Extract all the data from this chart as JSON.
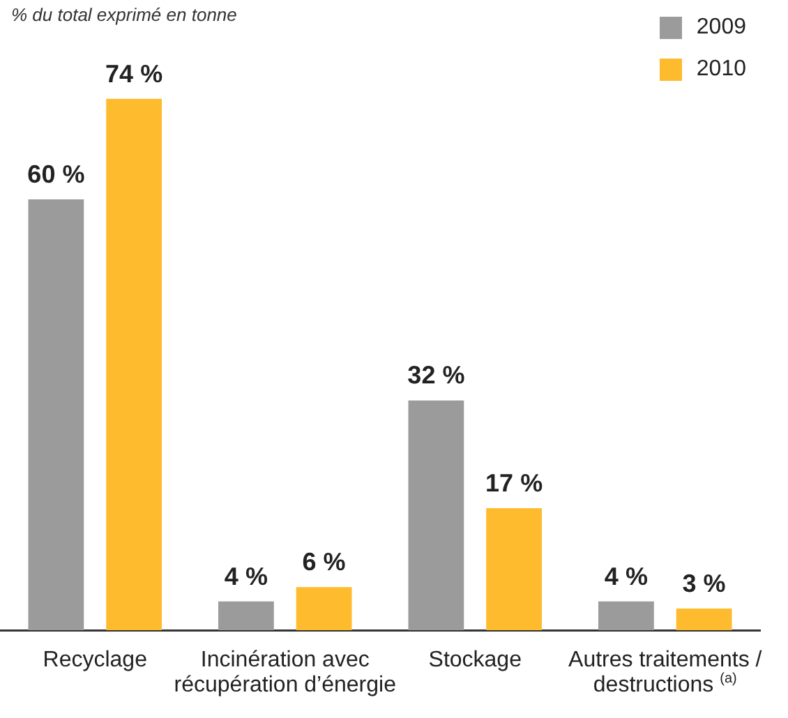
{
  "chart_data": {
    "type": "bar",
    "subtitle": "% du total exprimé en tonne",
    "categories": [
      "Recyclage",
      "Incinération avec récupération d’énergie",
      "Stockage",
      "Autres traitements / destructions $^{(a)}$"
    ],
    "series": [
      {
        "name": "2009",
        "color": "#9b9b9b",
        "values": [
          60,
          4,
          32,
          4
        ],
        "value_labels": [
          "60 %",
          "4 %",
          "32 %",
          "4 %"
        ]
      },
      {
        "name": "2010",
        "color": "#fdbb2d",
        "values": [
          74,
          6,
          17,
          3
        ],
        "value_labels": [
          "74 %",
          "6 %",
          "17 %",
          "3 %"
        ]
      }
    ],
    "legend": "top right",
    "tick_labels": "x"
  }
}
